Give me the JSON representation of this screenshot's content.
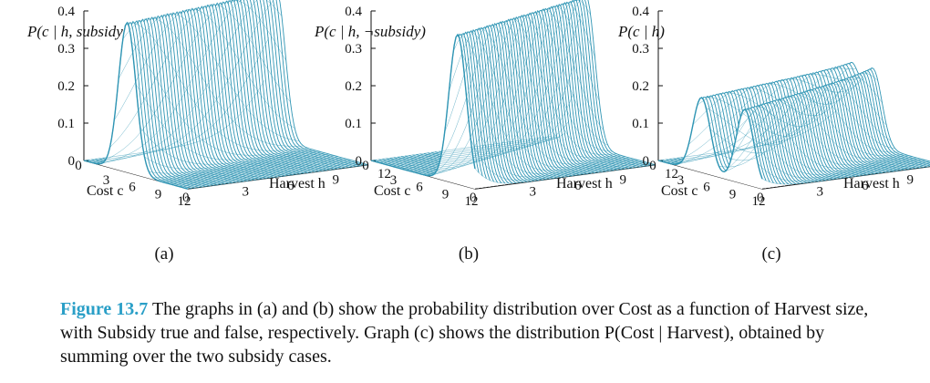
{
  "chart_data": [
    {
      "type": "surface",
      "title": "P(c | h, subsidy)",
      "xlabel": "Cost c",
      "ylabel": "Harvest h",
      "zlim": [
        0,
        0.4
      ],
      "z_ticks": [
        "0",
        "0.1",
        "0.2",
        "0.3",
        "0.4"
      ],
      "cost_ticks": [
        "0",
        "3",
        "6",
        "9",
        "12"
      ],
      "harvest_ticks": [
        "0",
        "3",
        "6",
        "9",
        "12"
      ],
      "peak": {
        "cost_at_harvest_0": 5,
        "cost_per_harvest": -0.3,
        "sd": 1.0,
        "value": 0.4
      },
      "panel_label": "(a)"
    },
    {
      "type": "surface",
      "title": "P(c | h, ¬subsidy)",
      "xlabel": "Cost c",
      "ylabel": "Harvest h",
      "zlim": [
        0,
        0.4
      ],
      "z_ticks": [
        "0",
        "0.1",
        "0.2",
        "0.3",
        "0.4"
      ],
      "cost_ticks": [
        "0",
        "3",
        "6",
        "9",
        "12"
      ],
      "harvest_ticks": [
        "0",
        "3",
        "6",
        "9",
        "12"
      ],
      "peak": {
        "cost_at_harvest_0": 10,
        "cost_per_harvest": -0.5,
        "sd": 1.0,
        "value": 0.4
      },
      "panel_label": "(b)"
    },
    {
      "type": "surface",
      "title": "P(c | h)",
      "xlabel": "Cost c",
      "ylabel": "Harvest h",
      "zlim": [
        0,
        0.4
      ],
      "z_ticks": [
        "0",
        "0.1",
        "0.2",
        "0.3",
        "0.4"
      ],
      "cost_ticks": [
        "0",
        "3",
        "6",
        "9",
        "12"
      ],
      "harvest_ticks": [
        "0",
        "3",
        "6",
        "9",
        "12"
      ],
      "mixture": "sum over the two subsidy cases",
      "panel_label": "(c)"
    }
  ],
  "colors": {
    "surface": "#2f95b4",
    "underside": "#888888",
    "figure_label": "#2a9fc7"
  },
  "caption": {
    "figure_label": "Figure 13.7",
    "text": "The graphs in (a) and (b) show the probability distribution over Cost as a function of Harvest size, with Subsidy true and false, respectively. Graph (c) shows the distribution P(Cost | Harvest), obtained by summing over the two subsidy cases."
  }
}
